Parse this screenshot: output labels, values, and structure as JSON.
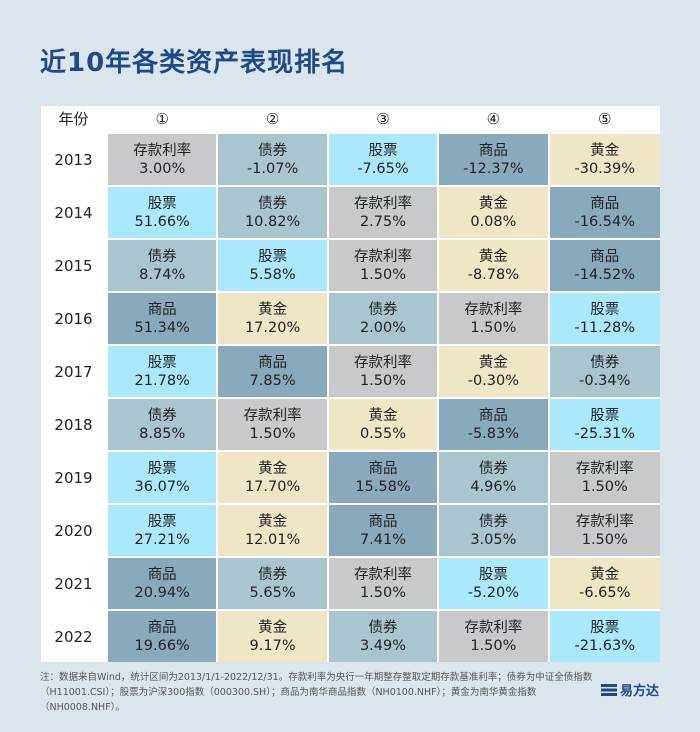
{
  "title": "近10年各类资产表现排名",
  "header": {
    "year_label": "年份",
    "ranks": [
      "①",
      "②",
      "③",
      "④",
      "⑤"
    ]
  },
  "rows": [
    {
      "year": "2013",
      "cells": [
        {
          "asset": "存款利率",
          "value": "3.00%",
          "type": "cunkuan"
        },
        {
          "asset": "债券",
          "value": "-1.07%",
          "type": "zhaiquan"
        },
        {
          "asset": "股票",
          "value": "-7.65%",
          "type": "gupiao"
        },
        {
          "asset": "商品",
          "value": "-12.37%",
          "type": "shangpin"
        },
        {
          "asset": "黄金",
          "value": "-30.39%",
          "type": "huangjin"
        }
      ]
    },
    {
      "year": "2014",
      "cells": [
        {
          "asset": "股票",
          "value": "51.66%",
          "type": "gupiao"
        },
        {
          "asset": "债券",
          "value": "10.82%",
          "type": "zhaiquan"
        },
        {
          "asset": "存款利率",
          "value": "2.75%",
          "type": "cunkuan"
        },
        {
          "asset": "黄金",
          "value": "0.08%",
          "type": "huangjin"
        },
        {
          "asset": "商品",
          "value": "-16.54%",
          "type": "shangpin"
        }
      ]
    },
    {
      "year": "2015",
      "cells": [
        {
          "asset": "债券",
          "value": "8.74%",
          "type": "zhaiquan"
        },
        {
          "asset": "股票",
          "value": "5.58%",
          "type": "gupiao"
        },
        {
          "asset": "存款利率",
          "value": "1.50%",
          "type": "cunkuan"
        },
        {
          "asset": "黄金",
          "value": "-8.78%",
          "type": "huangjin"
        },
        {
          "asset": "商品",
          "value": "-14.52%",
          "type": "shangpin"
        }
      ]
    },
    {
      "year": "2016",
      "cells": [
        {
          "asset": "商品",
          "value": "51.34%",
          "type": "shangpin"
        },
        {
          "asset": "黄金",
          "value": "17.20%",
          "type": "huangjin"
        },
        {
          "asset": "债券",
          "value": "2.00%",
          "type": "zhaiquan"
        },
        {
          "asset": "存款利率",
          "value": "1.50%",
          "type": "cunkuan"
        },
        {
          "asset": "股票",
          "value": "-11.28%",
          "type": "gupiao"
        }
      ]
    },
    {
      "year": "2017",
      "cells": [
        {
          "asset": "股票",
          "value": "21.78%",
          "type": "gupiao"
        },
        {
          "asset": "商品",
          "value": "7.85%",
          "type": "shangpin"
        },
        {
          "asset": "存款利率",
          "value": "1.50%",
          "type": "cunkuan"
        },
        {
          "asset": "黄金",
          "value": "-0.30%",
          "type": "huangjin"
        },
        {
          "asset": "债券",
          "value": "-0.34%",
          "type": "zhaiquan"
        }
      ]
    },
    {
      "year": "2018",
      "cells": [
        {
          "asset": "债券",
          "value": "8.85%",
          "type": "zhaiquan"
        },
        {
          "asset": "存款利率",
          "value": "1.50%",
          "type": "cunkuan"
        },
        {
          "asset": "黄金",
          "value": "0.55%",
          "type": "huangjin"
        },
        {
          "asset": "商品",
          "value": "-5.83%",
          "type": "shangpin"
        },
        {
          "asset": "股票",
          "value": "-25.31%",
          "type": "gupiao"
        }
      ]
    },
    {
      "year": "2019",
      "cells": [
        {
          "asset": "股票",
          "value": "36.07%",
          "type": "gupiao"
        },
        {
          "asset": "黄金",
          "value": "17.70%",
          "type": "huangjin"
        },
        {
          "asset": "商品",
          "value": "15.58%",
          "type": "shangpin"
        },
        {
          "asset": "债券",
          "value": "4.96%",
          "type": "zhaiquan"
        },
        {
          "asset": "存款利率",
          "value": "1.50%",
          "type": "cunkuan"
        }
      ]
    },
    {
      "year": "2020",
      "cells": [
        {
          "asset": "股票",
          "value": "27.21%",
          "type": "gupiao"
        },
        {
          "asset": "黄金",
          "value": "12.01%",
          "type": "huangjin"
        },
        {
          "asset": "商品",
          "value": "7.41%",
          "type": "shangpin"
        },
        {
          "asset": "债券",
          "value": "3.05%",
          "type": "zhaiquan"
        },
        {
          "asset": "存款利率",
          "value": "1.50%",
          "type": "cunkuan"
        }
      ]
    },
    {
      "year": "2021",
      "cells": [
        {
          "asset": "商品",
          "value": "20.94%",
          "type": "shangpin"
        },
        {
          "asset": "债券",
          "value": "5.65%",
          "type": "zhaiquan"
        },
        {
          "asset": "存款利率",
          "value": "1.50%",
          "type": "cunkuan"
        },
        {
          "asset": "股票",
          "value": "-5.20%",
          "type": "gupiao"
        },
        {
          "asset": "黄金",
          "value": "-6.65%",
          "type": "huangjin"
        }
      ]
    },
    {
      "year": "2022",
      "cells": [
        {
          "asset": "商品",
          "value": "19.66%",
          "type": "shangpin"
        },
        {
          "asset": "黄金",
          "value": "9.17%",
          "type": "huangjin"
        },
        {
          "asset": "债券",
          "value": "3.49%",
          "type": "zhaiquan"
        },
        {
          "asset": "存款利率",
          "value": "1.50%",
          "type": "cunkuan"
        },
        {
          "asset": "股票",
          "value": "-21.63%",
          "type": "gupiao"
        }
      ]
    }
  ],
  "colors": {
    "cunkuan": "#c7c9cb",
    "zhaiquan": "#a9c6cf",
    "gupiao": "#aae9fb",
    "shangpin": "#89a9bd",
    "huangjin": "#efe6c6",
    "title": "#1e4a8a",
    "background": "#dbe5ec"
  },
  "note": "注：数据来自Wind，统计区间为2013/1/1-2022/12/31。存款利率为央行一年期整存整取定期存款基准利率；债券为中证全债指数（H11001.CSI）；股票为沪深300指数（000300.SH）；商品为南华商品指数（NH0100.NHF）；黄金为南华黄金指数（NH0008.NHF）。",
  "logo": {
    "text": "易方达",
    "icon": "efunds-logo-icon"
  }
}
